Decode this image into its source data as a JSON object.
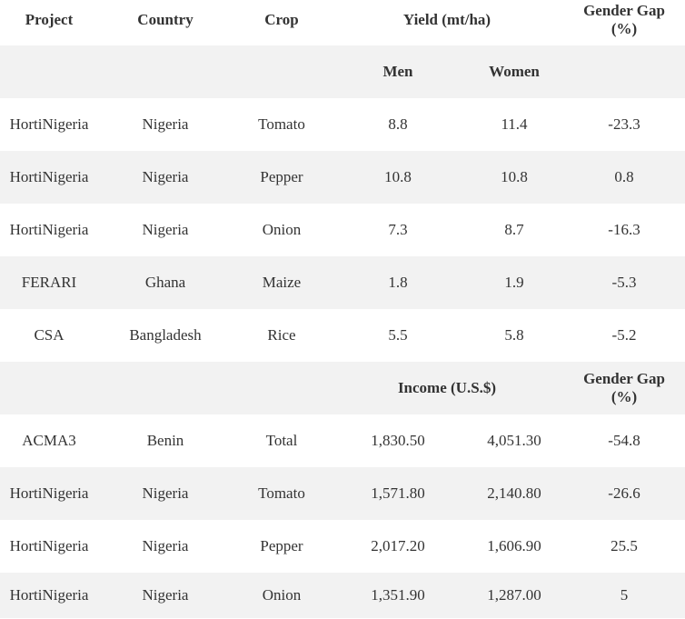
{
  "header": {
    "project": "Project",
    "country": "Country",
    "crop": "Crop",
    "yield": "Yield (mt/ha)",
    "gender_gap_line1": "Gender Gap",
    "gender_gap_line2": "(%)",
    "men": "Men",
    "women": "Women"
  },
  "yield_rows": [
    {
      "project": "HortiNigeria",
      "country": "Nigeria",
      "crop": "Tomato",
      "men": "8.8",
      "women": "11.4",
      "gap": "-23.3"
    },
    {
      "project": "HortiNigeria",
      "country": "Nigeria",
      "crop": "Pepper",
      "men": "10.8",
      "women": "10.8",
      "gap": "0.8"
    },
    {
      "project": "HortiNigeria",
      "country": "Nigeria",
      "crop": "Onion",
      "men": "7.3",
      "women": "8.7",
      "gap": "-16.3"
    },
    {
      "project": "FERARI",
      "country": "Ghana",
      "crop": "Maize",
      "men": "1.8",
      "women": "1.9",
      "gap": "-5.3"
    },
    {
      "project": "CSA",
      "country": "Bangladesh",
      "crop": "Rice",
      "men": "5.5",
      "women": "5.8",
      "gap": "-5.2"
    }
  ],
  "income_header": {
    "income": "Income (U.S.$)",
    "gender_gap_line1": "Gender Gap",
    "gender_gap_line2": "(%)"
  },
  "income_rows": [
    {
      "project": "ACMA3",
      "country": "Benin",
      "crop": "Total",
      "men": "1,830.50",
      "women": "4,051.30",
      "gap": "-54.8"
    },
    {
      "project": "HortiNigeria",
      "country": "Nigeria",
      "crop": "Tomato",
      "men": "1,571.80",
      "women": "2,140.80",
      "gap": "-26.6"
    },
    {
      "project": "HortiNigeria",
      "country": "Nigeria",
      "crop": "Pepper",
      "men": "2,017.20",
      "women": "1,606.90",
      "gap": "25.5"
    },
    {
      "project": "HortiNigeria",
      "country": "Nigeria",
      "crop": "Onion",
      "men": "1,351.90",
      "women": "1,287.00",
      "gap": "5"
    }
  ]
}
